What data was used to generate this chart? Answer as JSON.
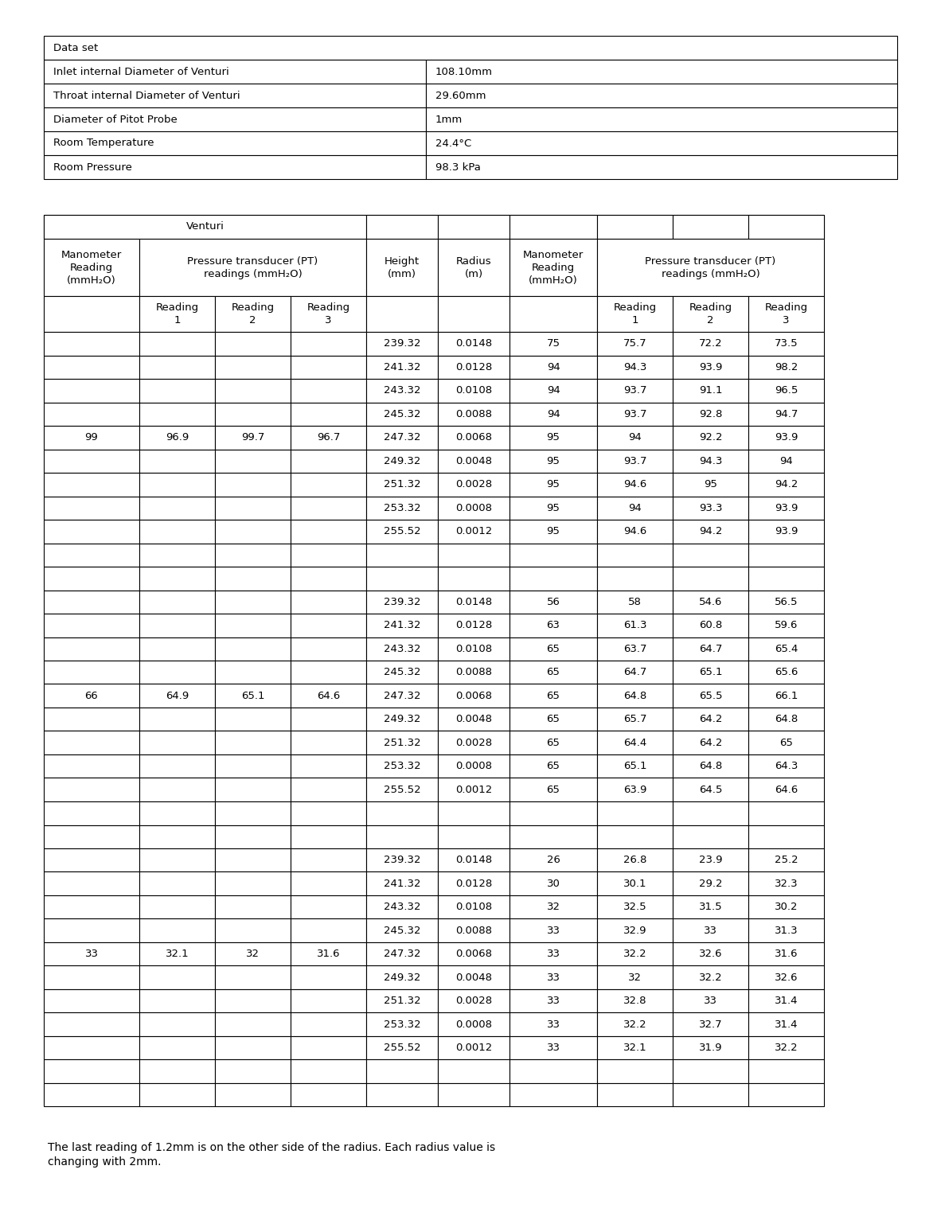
{
  "dataset_title": "Data set",
  "dataset_rows": [
    [
      "Inlet internal Diameter of Venturi",
      "108.10mm"
    ],
    [
      "Throat internal Diameter of Venturi",
      "29.60mm"
    ],
    [
      "Diameter of Pitot Probe",
      "1mm"
    ],
    [
      "Room Temperature",
      "24.4°C"
    ],
    [
      "Room Pressure",
      "98.3 kPa"
    ]
  ],
  "groups": [
    {
      "manometer": "99",
      "pt1": "96.9",
      "pt2": "99.7",
      "pt3": "96.7",
      "rows": [
        [
          "239.32",
          "0.0148",
          "75",
          "75.7",
          "72.2",
          "73.5"
        ],
        [
          "241.32",
          "0.0128",
          "94",
          "94.3",
          "93.9",
          "98.2"
        ],
        [
          "243.32",
          "0.0108",
          "94",
          "93.7",
          "91.1",
          "96.5"
        ],
        [
          "245.32",
          "0.0088",
          "94",
          "93.7",
          "92.8",
          "94.7"
        ],
        [
          "247.32",
          "0.0068",
          "95",
          "94",
          "92.2",
          "93.9"
        ],
        [
          "249.32",
          "0.0048",
          "95",
          "93.7",
          "94.3",
          "94"
        ],
        [
          "251.32",
          "0.0028",
          "95",
          "94.6",
          "95",
          "94.2"
        ],
        [
          "253.32",
          "0.0008",
          "95",
          "94",
          "93.3",
          "93.9"
        ],
        [
          "255.52",
          "0.0012",
          "95",
          "94.6",
          "94.2",
          "93.9"
        ]
      ]
    },
    {
      "manometer": "66",
      "pt1": "64.9",
      "pt2": "65.1",
      "pt3": "64.6",
      "rows": [
        [
          "239.32",
          "0.0148",
          "56",
          "58",
          "54.6",
          "56.5"
        ],
        [
          "241.32",
          "0.0128",
          "63",
          "61.3",
          "60.8",
          "59.6"
        ],
        [
          "243.32",
          "0.0108",
          "65",
          "63.7",
          "64.7",
          "65.4"
        ],
        [
          "245.32",
          "0.0088",
          "65",
          "64.7",
          "65.1",
          "65.6"
        ],
        [
          "247.32",
          "0.0068",
          "65",
          "64.8",
          "65.5",
          "66.1"
        ],
        [
          "249.32",
          "0.0048",
          "65",
          "65.7",
          "64.2",
          "64.8"
        ],
        [
          "251.32",
          "0.0028",
          "65",
          "64.4",
          "64.2",
          "65"
        ],
        [
          "253.32",
          "0.0008",
          "65",
          "65.1",
          "64.8",
          "64.3"
        ],
        [
          "255.52",
          "0.0012",
          "65",
          "63.9",
          "64.5",
          "64.6"
        ]
      ]
    },
    {
      "manometer": "33",
      "pt1": "32.1",
      "pt2": "32",
      "pt3": "31.6",
      "rows": [
        [
          "239.32",
          "0.0148",
          "26",
          "26.8",
          "23.9",
          "25.2"
        ],
        [
          "241.32",
          "0.0128",
          "30",
          "30.1",
          "29.2",
          "32.3"
        ],
        [
          "243.32",
          "0.0108",
          "32",
          "32.5",
          "31.5",
          "30.2"
        ],
        [
          "245.32",
          "0.0088",
          "33",
          "32.9",
          "33",
          "31.3"
        ],
        [
          "247.32",
          "0.0068",
          "33",
          "32.2",
          "32.6",
          "31.6"
        ],
        [
          "249.32",
          "0.0048",
          "33",
          "32",
          "32.2",
          "32.6"
        ],
        [
          "251.32",
          "0.0028",
          "33",
          "32.8",
          "33",
          "31.4"
        ],
        [
          "253.32",
          "0.0008",
          "33",
          "32.2",
          "32.7",
          "31.4"
        ],
        [
          "255.52",
          "0.0012",
          "33",
          "32.1",
          "31.9",
          "32.2"
        ]
      ]
    }
  ],
  "footnote": "The last reading of 1.2mm is on the other side of the radius. Each radius value is\nchanging with 2mm.",
  "bg_color": "#ffffff",
  "text_color": "#000000",
  "font_size": 9.5,
  "header_font_size": 9.5
}
